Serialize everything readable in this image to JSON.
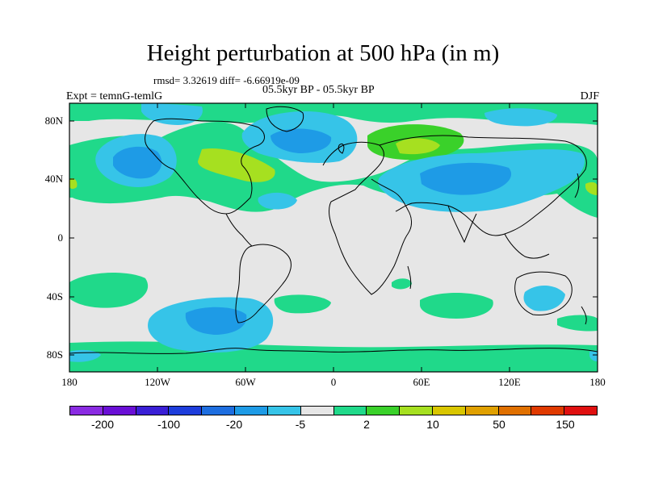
{
  "title": "Height perturbation at 500 hPa (in m)",
  "stats": "rmsd= 3.32619 diff= -6.66919e-09",
  "experiment": "Expt = temnG-temlG",
  "period": "05.5kyr BP - 05.5kyr BP",
  "season": "DJF",
  "lat_labels": [
    "80N",
    "40N",
    "0",
    "40S",
    "80S"
  ],
  "lon_labels": [
    "180",
    "120W",
    "60W",
    "0",
    "60E",
    "120E",
    "180"
  ],
  "colorbar": {
    "colors": [
      "#8a2be2",
      "#6a0fd6",
      "#3a1fd6",
      "#1e3ddc",
      "#1e6ee0",
      "#1e9be6",
      "#36c4e8",
      "#e6e6e6",
      "#20d98a",
      "#3ad12a",
      "#a6e020",
      "#d9c600",
      "#e0a000",
      "#e07000",
      "#e03a00",
      "#e01010"
    ],
    "labels": [
      "-200",
      "-100",
      "-20",
      "-5",
      "2",
      "10",
      "50",
      "150"
    ]
  }
}
